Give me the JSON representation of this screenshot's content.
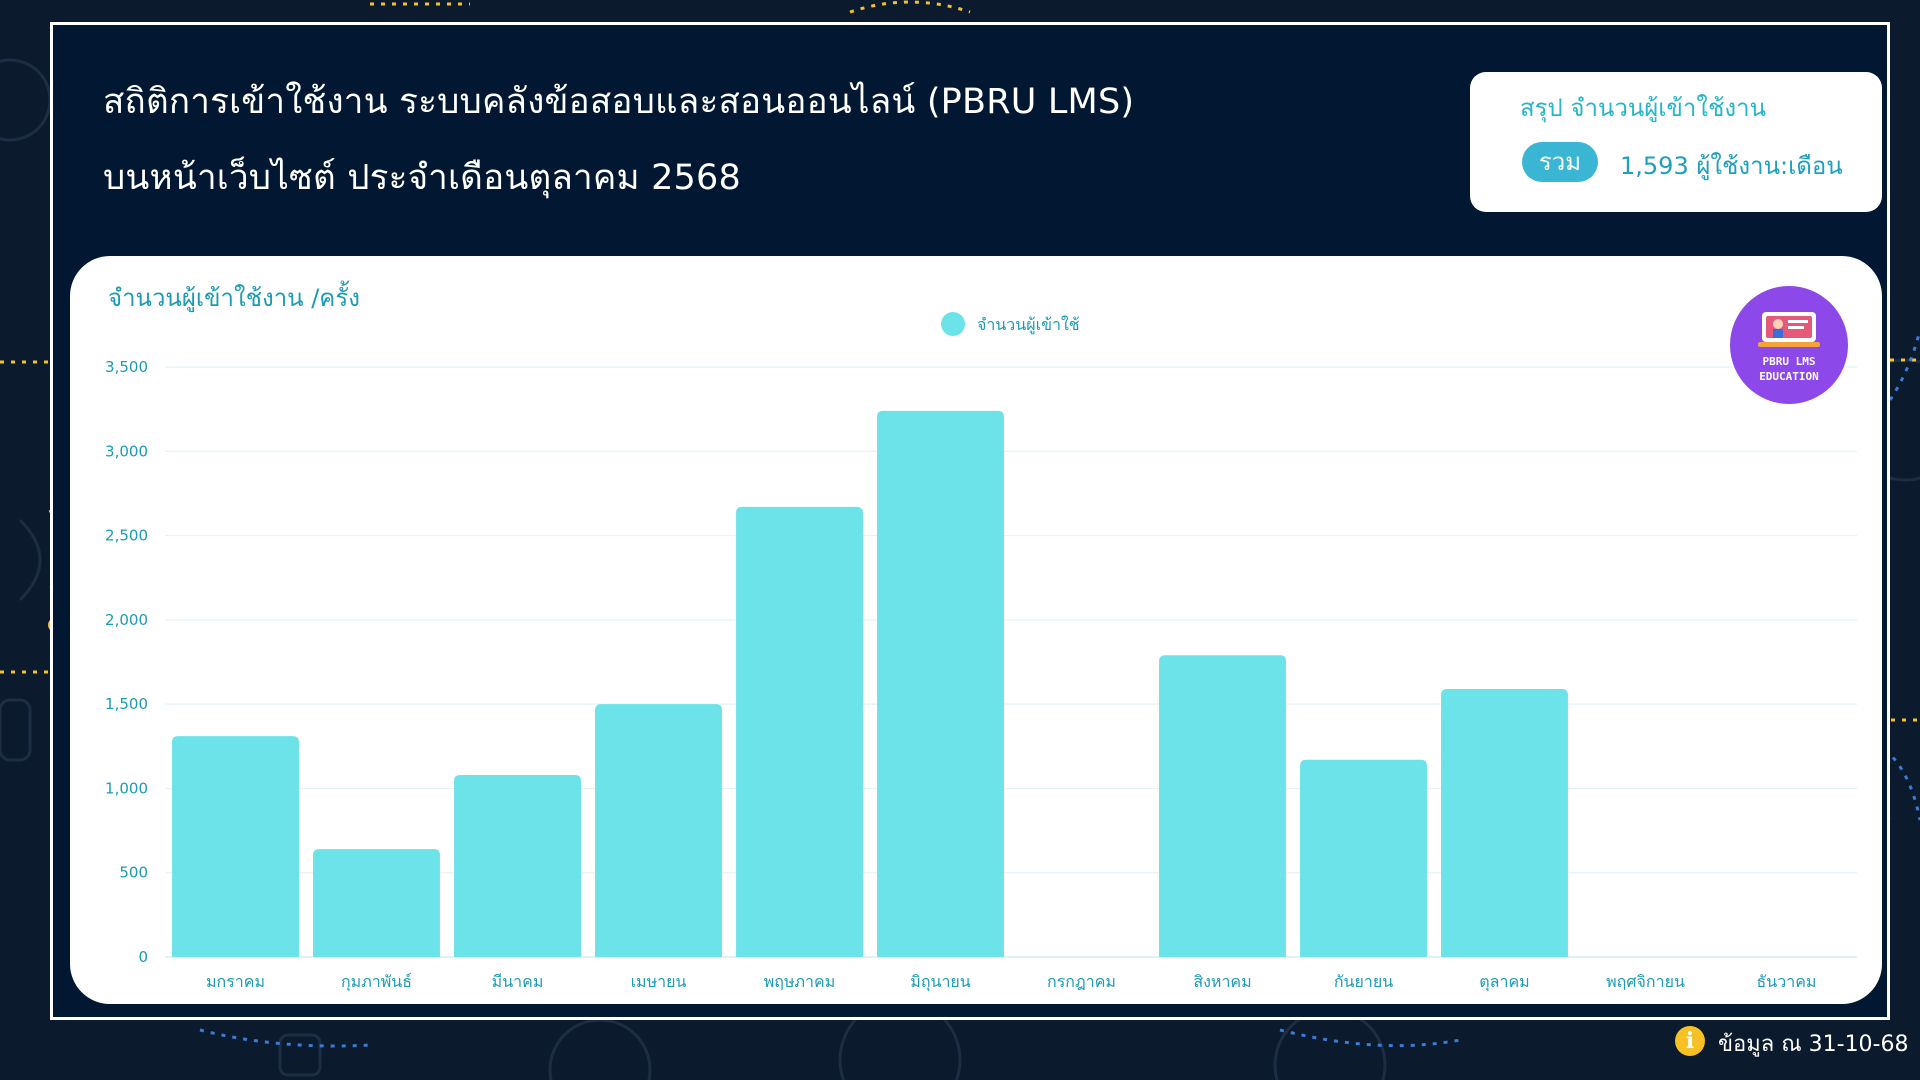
{
  "header": {
    "title_line1": "สถิติการเข้าใช้งาน ระบบคลังข้อสอบและสอนออนไลน์ (PBRU LMS)",
    "title_line2": "บนหน้าเว็บไซต์ ประจำเดือนตุลาคม 2568"
  },
  "summary": {
    "title": "สรุป จำนวนผู้เข้าใช้งาน",
    "pill": "รวม",
    "value": "1,593 ผู้ใช้งาน:เดือน"
  },
  "logo": {
    "text": "PBRU LMS\nEDUCATION"
  },
  "footer": {
    "text": "ข้อมูล ณ 31-10-68"
  },
  "colors": {
    "background": "#021731",
    "bar": "#6ce3e8",
    "accent": "#1c9bb3",
    "logo": "#8c48e8",
    "info": "#f6c125"
  },
  "chart_data": {
    "type": "bar",
    "title": "จำนวนผู้เข้าใช้งาน /ครั้ง",
    "categories": [
      "มกราคม",
      "กุมภาพันธ์",
      "มีนาคม",
      "เมษายน",
      "พฤษภาคม",
      "มิถุนายน",
      "กรกฎาคม",
      "สิงหาคม",
      "กันยายน",
      "ตุลาคม",
      "พฤศจิกายน",
      "ธันวาคม"
    ],
    "series": [
      {
        "name": "จำนวนผู้เข้าใช้",
        "values": [
          1310,
          640,
          1080,
          1500,
          2670,
          3240,
          0,
          1790,
          1170,
          1590,
          0,
          0
        ]
      }
    ],
    "ylim": [
      0,
      3500
    ],
    "yticks": [
      "0",
      "500",
      "1,000",
      "1,500",
      "2,000",
      "2,500",
      "3,000",
      "3,500"
    ],
    "grid": true,
    "legend": "top-center"
  }
}
